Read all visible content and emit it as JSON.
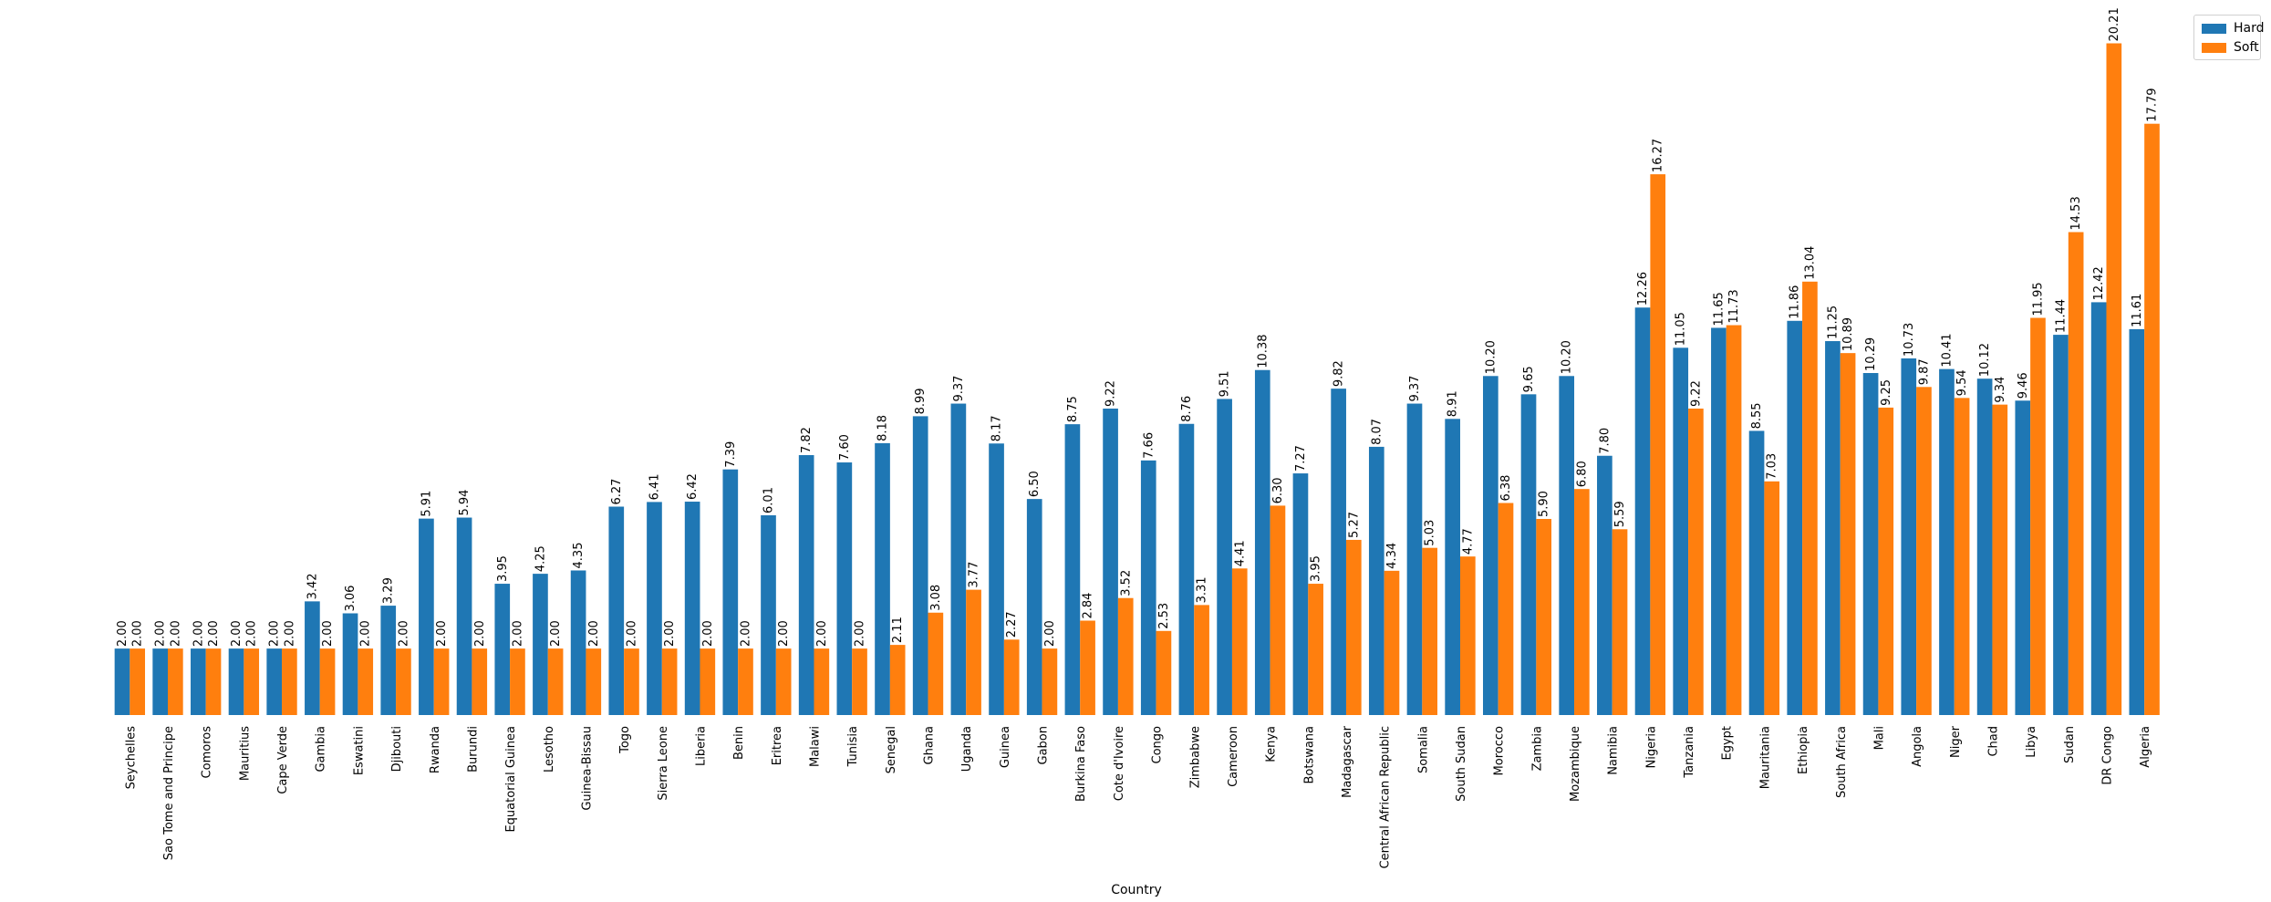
{
  "chart_data": {
    "type": "bar",
    "title": "",
    "xlabel": "Country",
    "ylabel": "",
    "ylim": [
      0,
      21
    ],
    "grid": false,
    "legend_position": "top-right",
    "value_label_format": "2 decimals",
    "categories": [
      "Seychelles",
      "Sao Tome and Principe",
      "Comoros",
      "Mauritius",
      "Cape Verde",
      "Gambia",
      "Eswatini",
      "Djibouti",
      "Rwanda",
      "Burundi",
      "Equatorial Guinea",
      "Lesotho",
      "Guinea-Bissau",
      "Togo",
      "Sierra Leone",
      "Liberia",
      "Benin",
      "Eritrea",
      "Malawi",
      "Tunisia",
      "Senegal",
      "Ghana",
      "Uganda",
      "Guinea",
      "Gabon",
      "Burkina Faso",
      "Cote d'Ivoire",
      "Congo",
      "Zimbabwe",
      "Cameroon",
      "Kenya",
      "Botswana",
      "Madagascar",
      "Central African Republic",
      "Somalia",
      "South Sudan",
      "Morocco",
      "Zambia",
      "Mozambique",
      "Namibia",
      "Nigeria",
      "Tanzania",
      "Egypt",
      "Mauritania",
      "Ethiopia",
      "South Africa",
      "Mali",
      "Angola",
      "Niger",
      "Chad",
      "Libya",
      "Sudan",
      "DR Congo",
      "Algeria"
    ],
    "series": [
      {
        "name": "Hard",
        "color": "#1f77b4",
        "values": [
          2.0,
          2.0,
          2.0,
          2.0,
          2.0,
          3.42,
          3.06,
          3.29,
          5.91,
          5.94,
          3.95,
          4.25,
          4.35,
          6.27,
          6.41,
          6.42,
          7.39,
          6.01,
          7.82,
          7.6,
          8.18,
          8.99,
          9.37,
          8.17,
          6.5,
          8.75,
          9.22,
          7.66,
          8.76,
          9.51,
          10.38,
          7.27,
          9.82,
          8.07,
          9.37,
          8.91,
          10.2,
          9.65,
          10.2,
          7.8,
          12.26,
          11.05,
          11.65,
          8.55,
          11.86,
          11.25,
          10.29,
          10.73,
          10.41,
          10.12,
          9.46,
          11.44,
          12.42,
          11.61
        ]
      },
      {
        "name": "Soft",
        "color": "#ff7f0e",
        "values": [
          2.0,
          2.0,
          2.0,
          2.0,
          2.0,
          2.0,
          2.0,
          2.0,
          2.0,
          2.0,
          2.0,
          2.0,
          2.0,
          2.0,
          2.0,
          2.0,
          2.0,
          2.0,
          2.0,
          2.0,
          2.11,
          3.08,
          3.77,
          2.27,
          2.0,
          2.84,
          3.52,
          2.53,
          3.31,
          4.41,
          6.3,
          3.95,
          5.27,
          4.34,
          5.03,
          4.77,
          6.38,
          5.9,
          6.8,
          5.59,
          16.27,
          9.22,
          11.73,
          7.03,
          13.04,
          10.89,
          9.25,
          9.87,
          9.54,
          9.34,
          11.95,
          14.53,
          20.21,
          17.79
        ]
      }
    ]
  }
}
